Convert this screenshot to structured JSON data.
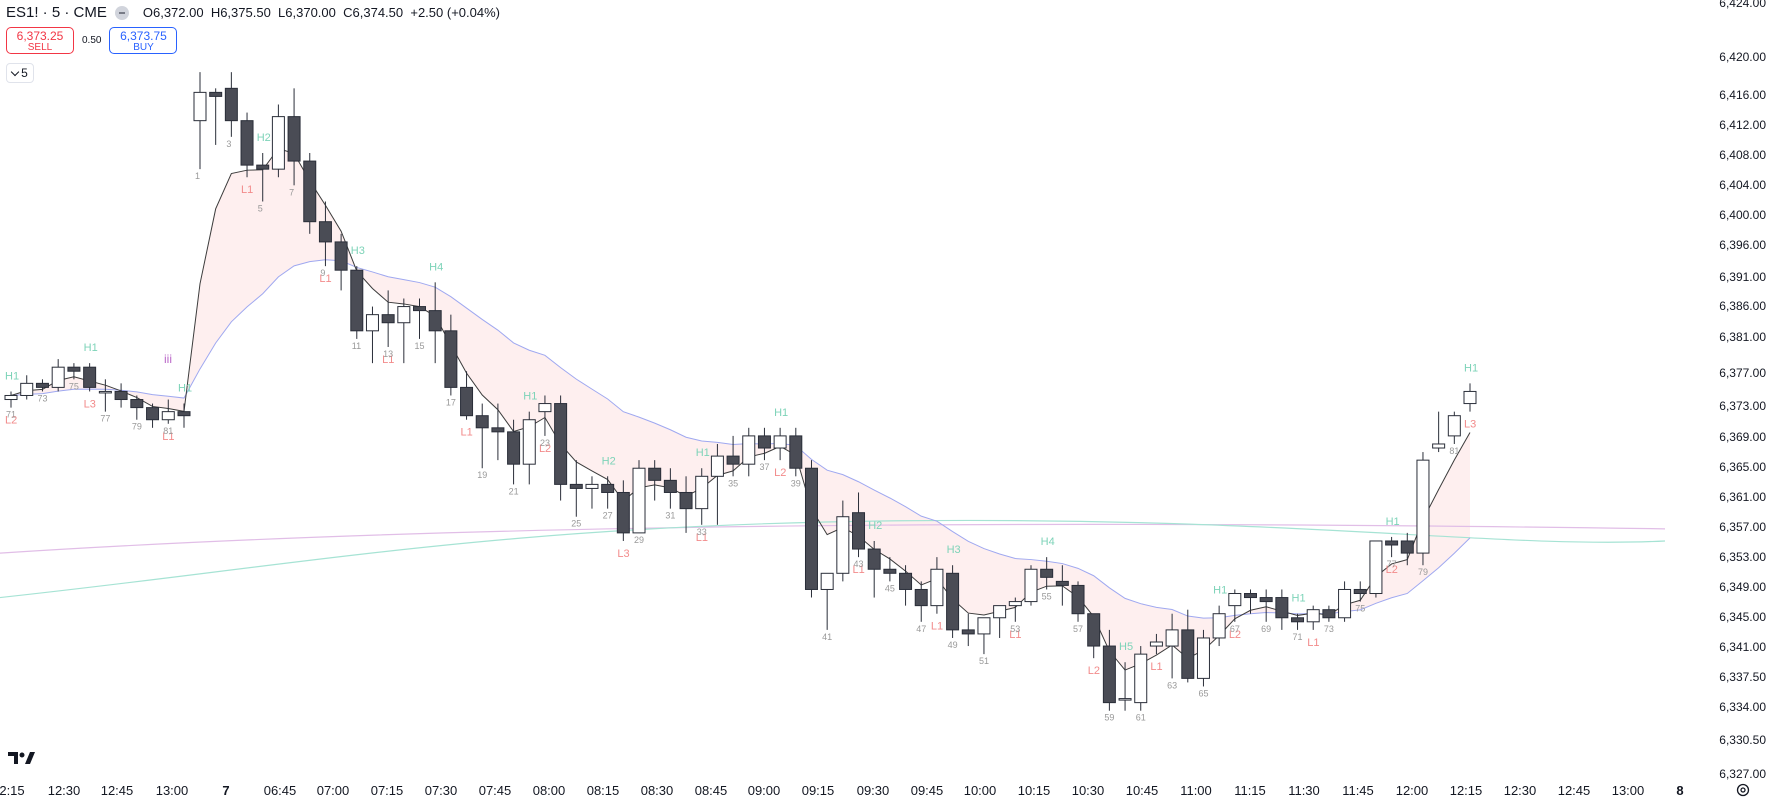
{
  "header": {
    "symbol": "ES1! · 5 · CME",
    "open": "O6,372.00",
    "high": "H6,375.50",
    "low": "L6,370.00",
    "close": "C6,374.50",
    "change": "+2.50 (+0.04%)"
  },
  "trade": {
    "sell_price": "6,373.25",
    "sell_label": "SELL",
    "spread": "0.50",
    "buy_price": "6,373.75",
    "buy_label": "BUY"
  },
  "interval_label": "5",
  "colors": {
    "bull_body": "#ffffff",
    "bear_body": "#4a4c55",
    "wick": "#2a2e39",
    "ema_fast": "#3c3c3c",
    "ema_red": "#f48fb1",
    "ema_blue": "#9fa8f0",
    "ma_purple": "#e1bee7",
    "ma_teal": "#a6e3d4",
    "band_blue": "#e3e9fb",
    "band_red": "#fde4e4",
    "label_green": "#7dd3b8",
    "label_red": "#f28b8b",
    "count_gray": "#999999"
  },
  "chart_data": {
    "type": "candlestick",
    "y_axis_ticks": [
      "6,424.00",
      "6,420.00",
      "6,416.00",
      "6,412.00",
      "6,408.00",
      "6,404.00",
      "6,400.00",
      "6,396.00",
      "6,391.00",
      "6,386.00",
      "6,381.00",
      "6,377.00",
      "6,373.00",
      "6,369.00",
      "6,365.00",
      "6,361.00",
      "6,357.00",
      "6,353.00",
      "6,349.00",
      "6,345.00",
      "6,341.00",
      "6,337.50",
      "6,334.00",
      "6,330.50",
      "6,327.00"
    ],
    "ylim": [
      6327,
      6424
    ],
    "x_axis_ticks": [
      "2:15",
      "12:30",
      "12:45",
      "13:00",
      "7",
      "06:45",
      "07:00",
      "07:15",
      "07:30",
      "07:45",
      "08:00",
      "08:15",
      "08:30",
      "08:45",
      "09:00",
      "09:15",
      "09:30",
      "09:45",
      "10:00",
      "10:15",
      "10:30",
      "10:45",
      "11:00",
      "11:15",
      "11:30",
      "11:45",
      "12:00",
      "12:15",
      "12:30",
      "12:45",
      "13:00",
      "8"
    ],
    "candles": [
      [
        6373.5,
        6374.5,
        6372.5,
        6374.0
      ],
      [
        6374.0,
        6376.5,
        6373.5,
        6375.5
      ],
      [
        6375.5,
        6376.0,
        6374.5,
        6375.0
      ],
      [
        6375.0,
        6378.5,
        6374.5,
        6377.5
      ],
      [
        6377.5,
        6378.0,
        6376.0,
        6377.0
      ],
      [
        6377.5,
        6378.0,
        6374.5,
        6375.0
      ],
      [
        6374.5,
        6376.0,
        6372.0,
        6374.5
      ],
      [
        6374.5,
        6375.5,
        6372.5,
        6373.5
      ],
      [
        6373.5,
        6374.0,
        6371.0,
        6372.5
      ],
      [
        6372.5,
        6373.0,
        6370.0,
        6371.0
      ],
      [
        6371.0,
        6373.5,
        6370.5,
        6372.0
      ],
      [
        6372.0,
        6373.0,
        6370.0,
        6371.5
      ],
      [
        6408.0,
        6414.0,
        6402.0,
        6411.5
      ],
      [
        6411.5,
        6412.0,
        6405.0,
        6411.0
      ],
      [
        6412.0,
        6414.0,
        6406.0,
        6408.0
      ],
      [
        6408.0,
        6409.0,
        6401.0,
        6402.5
      ],
      [
        6402.5,
        6404.0,
        6398.0,
        6402.0
      ],
      [
        6402.0,
        6410.0,
        6401.0,
        6408.5
      ],
      [
        6408.5,
        6412.0,
        6400.0,
        6403.0
      ],
      [
        6403.0,
        6404.0,
        6394.0,
        6395.5
      ],
      [
        6395.5,
        6398.0,
        6390.0,
        6393.0
      ],
      [
        6393.0,
        6394.0,
        6387.0,
        6389.5
      ],
      [
        6389.5,
        6390.0,
        6381.0,
        6382.0
      ],
      [
        6382.0,
        6385.0,
        6378.0,
        6384.0
      ],
      [
        6384.0,
        6387.0,
        6380.0,
        6383.0
      ],
      [
        6383.0,
        6386.0,
        6378.0,
        6385.0
      ],
      [
        6385.0,
        6386.0,
        6381.0,
        6384.5
      ],
      [
        6384.5,
        6388.0,
        6378.0,
        6382.0
      ],
      [
        6382.0,
        6384.0,
        6374.0,
        6375.0
      ],
      [
        6375.0,
        6377.0,
        6371.0,
        6371.5
      ],
      [
        6371.5,
        6373.0,
        6365.0,
        6370.0
      ],
      [
        6370.0,
        6373.0,
        6366.0,
        6369.5
      ],
      [
        6369.5,
        6371.0,
        6363.0,
        6365.5
      ],
      [
        6365.5,
        6372.0,
        6363.0,
        6371.0
      ],
      [
        6372.0,
        6374.0,
        6369.0,
        6373.0
      ],
      [
        6373.0,
        6374.0,
        6361.0,
        6363.0
      ],
      [
        6363.0,
        6366.0,
        6359.0,
        6362.5
      ],
      [
        6362.5,
        6364.0,
        6360.0,
        6363.0
      ],
      [
        6363.0,
        6364.0,
        6360.0,
        6362.0
      ],
      [
        6362.0,
        6363.5,
        6356.0,
        6357.0
      ],
      [
        6357.0,
        6366.0,
        6357.0,
        6365.0
      ],
      [
        6365.0,
        6366.0,
        6361.0,
        6363.5
      ],
      [
        6363.5,
        6365.0,
        6360.0,
        6362.0
      ],
      [
        6362.0,
        6364.0,
        6357.0,
        6360.0
      ],
      [
        6360.0,
        6365.0,
        6358.0,
        6364.0
      ],
      [
        6364.0,
        6368.0,
        6358.0,
        6366.5
      ],
      [
        6366.5,
        6369.0,
        6364.0,
        6365.5
      ],
      [
        6365.5,
        6370.0,
        6364.0,
        6369.0
      ],
      [
        6369.0,
        6370.0,
        6366.0,
        6367.5
      ],
      [
        6367.5,
        6370.0,
        6366.0,
        6369.0
      ],
      [
        6369.0,
        6370.0,
        6364.0,
        6365.0
      ],
      [
        6365.0,
        6366.0,
        6349.0,
        6350.0
      ],
      [
        6350.0,
        6352.0,
        6345.0,
        6352.0
      ],
      [
        6352.0,
        6361.0,
        6351.0,
        6359.0
      ],
      [
        6359.5,
        6362.0,
        6354.0,
        6355.0
      ],
      [
        6355.0,
        6356.0,
        6349.0,
        6352.5
      ],
      [
        6352.5,
        6354.0,
        6351.0,
        6352.0
      ],
      [
        6352.0,
        6353.0,
        6348.0,
        6350.0
      ],
      [
        6350.0,
        6351.0,
        6346.0,
        6348.0
      ],
      [
        6348.0,
        6354.0,
        6347.0,
        6352.5
      ],
      [
        6352.0,
        6353.0,
        6344.0,
        6345.0
      ],
      [
        6345.0,
        6347.0,
        6343.0,
        6344.5
      ],
      [
        6344.5,
        6346.0,
        6342.0,
        6346.5
      ],
      [
        6346.5,
        6348.0,
        6344.0,
        6348.0
      ],
      [
        6348.0,
        6349.0,
        6346.0,
        6348.5
      ],
      [
        6348.5,
        6353.0,
        6348.0,
        6352.5
      ],
      [
        6352.5,
        6354.0,
        6350.0,
        6351.5
      ],
      [
        6351.0,
        6353.0,
        6348.0,
        6350.5
      ],
      [
        6350.5,
        6351.0,
        6346.0,
        6347.0
      ],
      [
        6347.0,
        6347.0,
        6341.5,
        6343.0
      ],
      [
        6343.0,
        6345.0,
        6335.0,
        6336.0
      ],
      [
        6336.5,
        6341.0,
        6335.0,
        6336.5
      ],
      [
        6336.0,
        6343.0,
        6335.0,
        6342.0
      ],
      [
        6343.0,
        6344.5,
        6342.0,
        6343.5
      ],
      [
        6343.0,
        6347.0,
        6339.0,
        6345.0
      ],
      [
        6345.0,
        6347.5,
        6338.5,
        6339.0
      ],
      [
        6339.0,
        6345.0,
        6338.0,
        6344.0
      ],
      [
        6344.0,
        6348.0,
        6343.0,
        6347.0
      ],
      [
        6348.0,
        6350.0,
        6346.0,
        6349.5
      ],
      [
        6349.5,
        6350.0,
        6347.0,
        6349.0
      ],
      [
        6349.0,
        6350.0,
        6346.0,
        6348.5
      ],
      [
        6349.0,
        6350.0,
        6345.0,
        6346.5
      ],
      [
        6346.5,
        6347.0,
        6345.0,
        6346.0
      ],
      [
        6346.0,
        6348.0,
        6345.0,
        6347.5
      ],
      [
        6347.5,
        6348.0,
        6346.0,
        6346.5
      ],
      [
        6346.5,
        6351.0,
        6346.0,
        6350.0
      ],
      [
        6350.0,
        6351.0,
        6348.5,
        6349.5
      ],
      [
        6349.5,
        6356.0,
        6349.0,
        6356.0
      ],
      [
        6356.0,
        6356.5,
        6354.0,
        6355.5
      ],
      [
        6356.0,
        6357.0,
        6353.0,
        6354.5
      ],
      [
        6354.5,
        6367.0,
        6353.0,
        6366.0
      ],
      [
        6367.5,
        6372.0,
        6367.0,
        6368.0
      ],
      [
        6369.0,
        6372.0,
        6368.0,
        6371.5
      ],
      [
        6373.0,
        6375.5,
        6372.0,
        6374.5
      ]
    ],
    "bar_labels": {
      "green": [
        "H1",
        "H1",
        "H1",
        "H2",
        "H3",
        "H4",
        "H1",
        "H2",
        "H1",
        "H1",
        "H2",
        "H3",
        "H4",
        "H5",
        "H1",
        "H1",
        "H1",
        "H1"
      ],
      "red": [
        "L2",
        "L3",
        "L1",
        "L1",
        "L1",
        "L1",
        "L1",
        "L2",
        "L3",
        "L1",
        "L2",
        "L1",
        "L1",
        "L1",
        "L2",
        "L1",
        "L2",
        "L1",
        "L2",
        "L3"
      ],
      "counts": [
        "71",
        "73",
        "75",
        "77",
        "79",
        "81",
        "1",
        "3",
        "5",
        "7",
        "9",
        "11",
        "13",
        "15",
        "17",
        "19",
        "21",
        "23",
        "25",
        "27",
        "29",
        "31",
        "33",
        "35",
        "37",
        "39",
        "41",
        "43",
        "45",
        "47",
        "49",
        "51",
        "53",
        "55",
        "57",
        "59",
        "61",
        "63",
        "65",
        "67",
        "69",
        "71",
        "73",
        "75",
        "77",
        "79",
        "81"
      ],
      "marker": "iii"
    }
  }
}
